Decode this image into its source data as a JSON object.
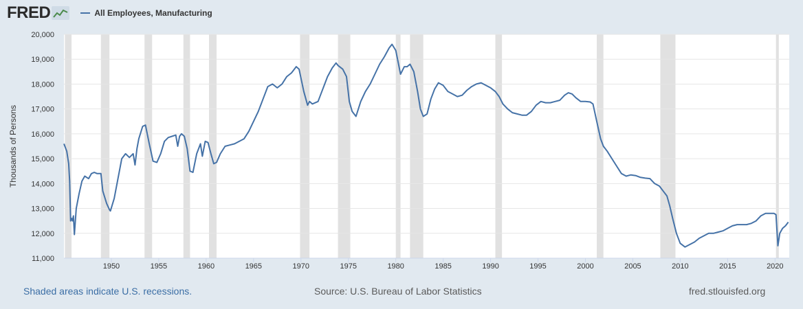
{
  "header": {
    "logo_text": "FRED",
    "logo_icon": "line-chart-icon"
  },
  "footer": {
    "note": "Shaded areas indicate U.S. recessions.",
    "source": "Source: U.S. Bureau of Labor Statistics",
    "site": "fred.stlouisfed.org"
  },
  "chart_data": {
    "type": "line",
    "title": "",
    "xlabel": "",
    "ylabel": "Thousands of Persons",
    "xlim": [
      1945.0,
      2021.5
    ],
    "ylim": [
      11000,
      20000
    ],
    "yticks": [
      11000,
      12000,
      13000,
      14000,
      15000,
      16000,
      17000,
      18000,
      19000,
      20000
    ],
    "ytick_labels": [
      "11,000",
      "12,000",
      "13,000",
      "14,000",
      "15,000",
      "16,000",
      "17,000",
      "18,000",
      "19,000",
      "20,000"
    ],
    "xticks": [
      1950,
      1955,
      1960,
      1965,
      1970,
      1975,
      1980,
      1985,
      1990,
      1995,
      2000,
      2005,
      2010,
      2015,
      2020
    ],
    "xtick_labels": [
      "1950",
      "1955",
      "1960",
      "1965",
      "1970",
      "1975",
      "1980",
      "1985",
      "1990",
      "1995",
      "2000",
      "2005",
      "2010",
      "2015",
      "2020"
    ],
    "grid": true,
    "legend_position": "top-left",
    "colors": {
      "line": "#4572a7",
      "recession": "#e1e1e1",
      "grid": "#e6e6e6"
    },
    "recessions": [
      [
        1945.1,
        1945.8
      ],
      [
        1948.9,
        1949.8
      ],
      [
        1953.5,
        1954.3
      ],
      [
        1957.6,
        1958.3
      ],
      [
        1960.3,
        1961.1
      ],
      [
        1969.9,
        1970.9
      ],
      [
        1973.9,
        1975.2
      ],
      [
        1980.0,
        1980.5
      ],
      [
        1981.5,
        1982.9
      ],
      [
        1990.5,
        1991.2
      ],
      [
        2001.2,
        2001.9
      ],
      [
        2007.9,
        2009.5
      ],
      [
        2020.1,
        2020.4
      ]
    ],
    "series": [
      {
        "name": "All Employees, Manufacturing",
        "x": [
          1945.0,
          1945.3,
          1945.5,
          1945.6,
          1945.7,
          1945.8,
          1945.9,
          1946.0,
          1946.1,
          1946.3,
          1946.6,
          1946.9,
          1947.2,
          1947.6,
          1947.9,
          1948.2,
          1948.5,
          1948.9,
          1949.1,
          1949.5,
          1949.8,
          1949.9,
          1950.3,
          1950.7,
          1951.1,
          1951.5,
          1951.9,
          1952.3,
          1952.5,
          1952.7,
          1952.9,
          1953.3,
          1953.6,
          1954.0,
          1954.4,
          1954.8,
          1955.2,
          1955.6,
          1956.0,
          1956.4,
          1956.8,
          1957.0,
          1957.2,
          1957.4,
          1957.7,
          1958.0,
          1958.3,
          1958.6,
          1959.0,
          1959.4,
          1959.6,
          1959.9,
          1960.2,
          1960.5,
          1960.8,
          1961.1,
          1961.5,
          1962.0,
          1962.5,
          1963.0,
          1963.5,
          1964.0,
          1964.5,
          1965.0,
          1965.5,
          1966.0,
          1966.5,
          1967.0,
          1967.5,
          1968.0,
          1968.5,
          1969.0,
          1969.5,
          1969.8,
          1970.3,
          1970.7,
          1970.9,
          1971.2,
          1971.8,
          1972.3,
          1972.8,
          1973.3,
          1973.7,
          1973.9,
          1974.4,
          1974.8,
          1975.1,
          1975.4,
          1975.8,
          1976.3,
          1976.8,
          1977.3,
          1977.8,
          1978.3,
          1978.8,
          1979.3,
          1979.6,
          1980.0,
          1980.5,
          1980.9,
          1981.2,
          1981.5,
          1981.9,
          1982.3,
          1982.6,
          1982.9,
          1983.3,
          1983.7,
          1984.1,
          1984.5,
          1985.0,
          1985.5,
          1986.0,
          1986.5,
          1987.0,
          1987.5,
          1988.0,
          1988.5,
          1989.0,
          1989.5,
          1990.0,
          1990.5,
          1990.9,
          1991.3,
          1991.8,
          1992.3,
          1992.8,
          1993.3,
          1993.8,
          1994.3,
          1994.8,
          1995.3,
          1995.8,
          1996.3,
          1996.8,
          1997.3,
          1997.8,
          1998.2,
          1998.6,
          1999.0,
          1999.5,
          2000.0,
          2000.5,
          2000.8,
          2001.2,
          2001.6,
          2001.9,
          2002.3,
          2002.8,
          2003.3,
          2003.8,
          2004.3,
          2004.8,
          2005.3,
          2005.8,
          2006.3,
          2006.8,
          2007.3,
          2007.8,
          2008.2,
          2008.6,
          2008.9,
          2009.2,
          2009.6,
          2010.0,
          2010.5,
          2011.0,
          2011.5,
          2012.0,
          2012.5,
          2013.0,
          2013.5,
          2014.0,
          2014.5,
          2015.0,
          2015.5,
          2016.0,
          2016.5,
          2017.0,
          2017.5,
          2018.0,
          2018.5,
          2019.0,
          2019.5,
          2019.9,
          2020.1,
          2020.3,
          2020.5,
          2020.8,
          2021.1,
          2021.4
        ],
        "y": [
          15600,
          15300,
          14800,
          14100,
          12500,
          12600,
          12500,
          12700,
          11950,
          13000,
          13600,
          14100,
          14300,
          14200,
          14400,
          14450,
          14400,
          14400,
          13700,
          13200,
          12950,
          12900,
          13400,
          14200,
          15000,
          15200,
          15050,
          15200,
          14750,
          15400,
          15800,
          16300,
          16350,
          15600,
          14900,
          14850,
          15200,
          15700,
          15850,
          15900,
          15950,
          15500,
          15900,
          16000,
          15900,
          15400,
          14500,
          14450,
          15200,
          15600,
          15100,
          15700,
          15650,
          15200,
          14800,
          14850,
          15200,
          15500,
          15550,
          15600,
          15700,
          15800,
          16100,
          16500,
          16900,
          17400,
          17900,
          18000,
          17850,
          18000,
          18300,
          18450,
          18700,
          18600,
          17700,
          17150,
          17300,
          17200,
          17300,
          17800,
          18300,
          18650,
          18850,
          18750,
          18600,
          18300,
          17300,
          16900,
          16700,
          17300,
          17700,
          18000,
          18400,
          18800,
          19100,
          19450,
          19600,
          19350,
          18400,
          18700,
          18700,
          18800,
          18500,
          17700,
          17000,
          16700,
          16800,
          17400,
          17800,
          18050,
          17950,
          17700,
          17600,
          17500,
          17550,
          17750,
          17900,
          18000,
          18050,
          17950,
          17850,
          17700,
          17500,
          17200,
          17000,
          16850,
          16800,
          16750,
          16750,
          16900,
          17150,
          17300,
          17250,
          17250,
          17300,
          17350,
          17550,
          17650,
          17600,
          17450,
          17300,
          17300,
          17280,
          17200,
          16500,
          15800,
          15500,
          15300,
          15000,
          14700,
          14400,
          14300,
          14350,
          14320,
          14250,
          14220,
          14200,
          14000,
          13900,
          13700,
          13500,
          13100,
          12600,
          12000,
          11600,
          11450,
          11550,
          11650,
          11800,
          11900,
          12000,
          12000,
          12050,
          12100,
          12200,
          12300,
          12350,
          12350,
          12350,
          12400,
          12500,
          12700,
          12800,
          12800,
          12800,
          12750,
          11500,
          12000,
          12200,
          12300,
          12450
        ]
      }
    ]
  }
}
